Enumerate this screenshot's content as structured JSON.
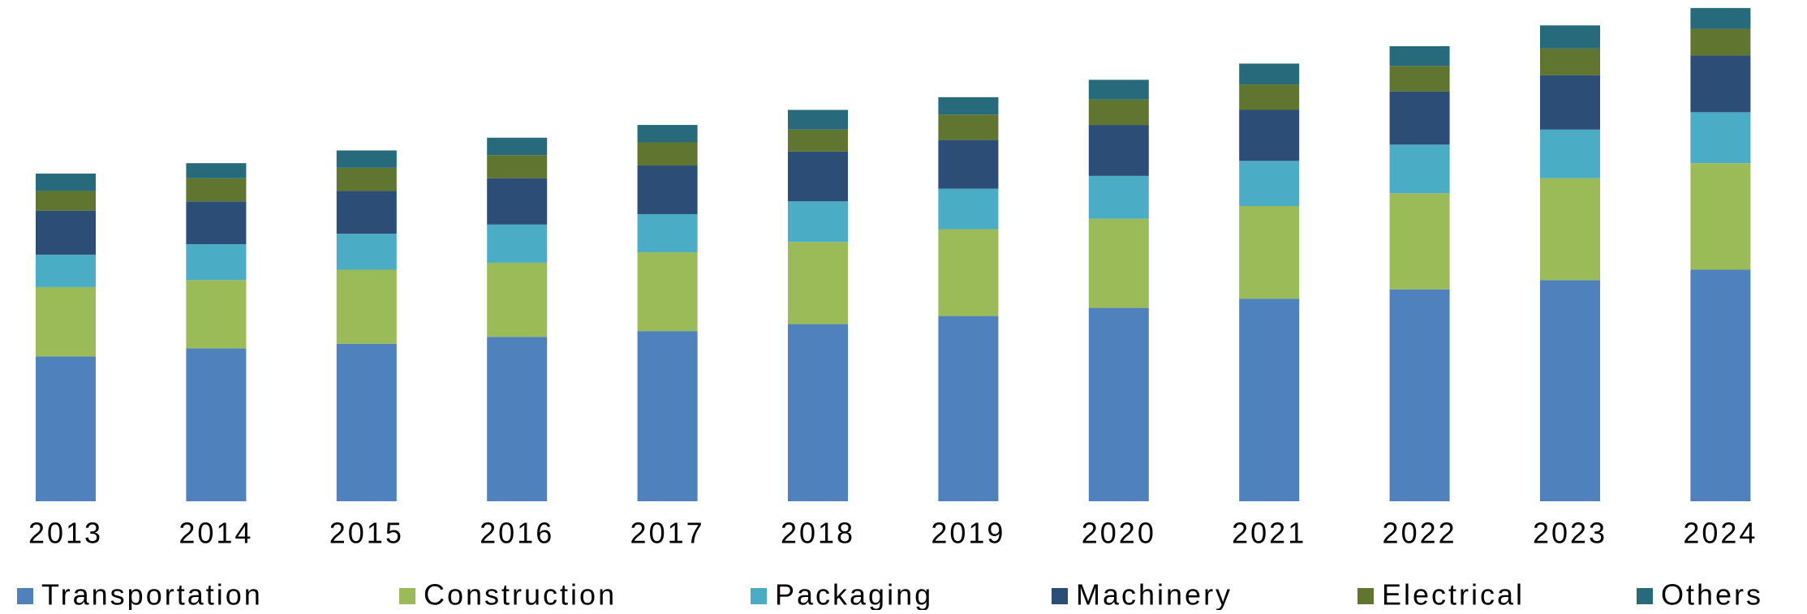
{
  "chart_data": {
    "type": "stacked_bar",
    "categories": [
      "2013",
      "2014",
      "2015",
      "2016",
      "2017",
      "2018",
      "2019",
      "2020",
      "2021",
      "2022",
      "2023",
      "2024"
    ],
    "series": [
      {
        "name": "Transportation",
        "color": "#4f81bd",
        "values": [
          125,
          132,
          136,
          142,
          147,
          153,
          160,
          167,
          175,
          183,
          191,
          200
        ]
      },
      {
        "name": "Construction",
        "color": "#9bbb59",
        "values": [
          60,
          59,
          64,
          64,
          68,
          71,
          75,
          77,
          80,
          83,
          88,
          92
        ]
      },
      {
        "name": "Packaging",
        "color": "#4bacc6",
        "values": [
          28,
          31,
          31,
          33,
          33,
          35,
          35,
          37,
          39,
          42,
          42,
          44
        ]
      },
      {
        "name": "Machinery",
        "color": "#2c4d75",
        "values": [
          38,
          37,
          37,
          40,
          42,
          43,
          42,
          44,
          44,
          46,
          47,
          49
        ]
      },
      {
        "name": "Electrical",
        "color": "#5f7530",
        "values": [
          17,
          20,
          20,
          20,
          20,
          19,
          22,
          22,
          22,
          22,
          23,
          23
        ]
      },
      {
        "name": "Others",
        "color": "#276a7c",
        "values": [
          15,
          13,
          15,
          15,
          15,
          17,
          15,
          17,
          18,
          17,
          20,
          18
        ]
      }
    ]
  }
}
